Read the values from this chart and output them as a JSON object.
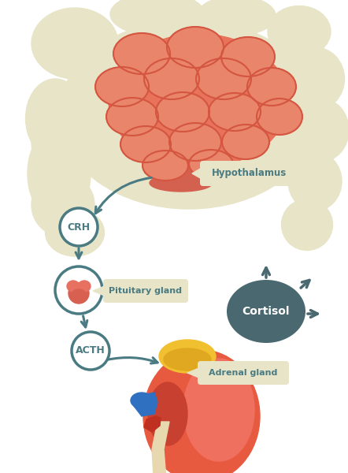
{
  "bg_color": "#ffffff",
  "teal": "#4a7b82",
  "brain_base": "#e8735a",
  "brain_gyri": "#e8856a",
  "brain_outline": "#d45540",
  "brain_stem_color": "#d46050",
  "head_color": "#e8e4c8",
  "kidney_red": "#e85a40",
  "kidney_highlight": "#f07060",
  "kidney_edge": "#c84030",
  "adrenal_yellow": "#f0c030",
  "adrenal_shadow": "#e0a820",
  "ureter_beige": "#e8d8b0",
  "blue_vessel": "#3070c0",
  "red_vessel": "#c03020",
  "label_bg": "#e8e4c8",
  "label_text": "#4a7b82",
  "cortisol_bg": "#4a6870",
  "arrow_color": "#4a7b82",
  "white": "#ffffff",
  "labels": {
    "hypothalamus": "Hypothalamus",
    "pituitary": "Pituitary gland",
    "adrenal": "Adrenal gland",
    "cortisol": "Cortisol",
    "crh": "CRH",
    "acth": "ACTH"
  }
}
